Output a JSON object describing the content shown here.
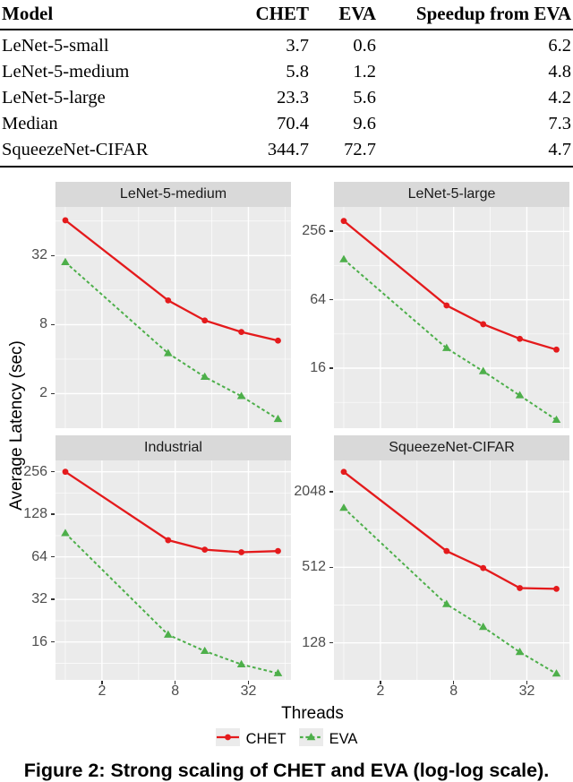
{
  "table": {
    "headers": [
      "Model",
      "CHET",
      "EVA",
      "Speedup from EVA"
    ],
    "rows": [
      [
        "LeNet-5-small",
        "3.7",
        "0.6",
        "6.2"
      ],
      [
        "LeNet-5-medium",
        "5.8",
        "1.2",
        "4.8"
      ],
      [
        "LeNet-5-large",
        "23.3",
        "5.6",
        "4.2"
      ],
      [
        "Median",
        "70.4",
        "9.6",
        "7.3"
      ],
      [
        "SqueezeNet-CIFAR",
        "344.7",
        "72.7",
        "4.7"
      ]
    ]
  },
  "chart_data": {
    "type": "line",
    "scale": "log-log",
    "xlabel": "Threads",
    "ylabel": "Average Latency (sec)",
    "x": [
      1,
      7,
      14,
      28,
      56
    ],
    "x_ticks": [
      2,
      8,
      32
    ],
    "x_minor": [
      1,
      4,
      16,
      64
    ],
    "xlim": [
      0.83,
      71.6
    ],
    "legend_labels": [
      "CHET",
      "EVA"
    ],
    "legend_position": "bottom",
    "grid": true,
    "series_styles": [
      {
        "name": "CHET",
        "color": "#e41a1c",
        "marker": "circle",
        "dash": "solid"
      },
      {
        "name": "EVA",
        "color": "#4daf4a",
        "marker": "triangle",
        "dash": "dashed"
      }
    ],
    "panels": [
      {
        "title": "LeNet-5-medium",
        "ylim": [
          1.0,
          85
        ],
        "y_ticks": [
          32,
          8,
          2
        ],
        "y_minor": [
          64,
          16,
          4
        ],
        "series": [
          {
            "name": "CHET",
            "values": [
              65,
              13,
              8.7,
              6.9,
              5.8
            ]
          },
          {
            "name": "EVA",
            "values": [
              28,
              4.5,
              2.8,
              1.9,
              1.2
            ]
          }
        ]
      },
      {
        "title": "LeNet-5-large",
        "ylim": [
          4.74,
          420
        ],
        "y_ticks": [
          256,
          64,
          16
        ],
        "y_minor": [
          128,
          32,
          8
        ],
        "series": [
          {
            "name": "CHET",
            "values": [
              316,
              57,
              39,
              29,
              23.3
            ]
          },
          {
            "name": "EVA",
            "values": [
              145,
              24,
              15,
              9.2,
              5.6
            ]
          }
        ]
      },
      {
        "title": "Industrial",
        "ylim": [
          8.63,
          308
        ],
        "y_ticks": [
          256,
          128,
          64,
          32,
          16
        ],
        "y_minor": [
          181,
          90.5,
          45.3,
          22.6,
          11.3
        ],
        "series": [
          {
            "name": "CHET",
            "values": [
              256,
              84,
              72,
              69,
              70.4
            ]
          },
          {
            "name": "EVA",
            "values": [
              94,
              18,
              13.8,
              11.1,
              9.6
            ]
          }
        ]
      },
      {
        "title": "SqueezeNet-CIFAR",
        "ylim": [
          64.9,
          3638
        ],
        "y_ticks": [
          2048,
          512,
          128
        ],
        "y_minor": [
          1024,
          256
        ],
        "series": [
          {
            "name": "CHET",
            "values": [
              2950,
              690,
              505,
              350,
              344.7
            ]
          },
          {
            "name": "EVA",
            "values": [
              1520,
              260,
              171,
              108,
              72.7
            ]
          }
        ]
      }
    ]
  },
  "caption": {
    "text": "Figure 2: Strong scaling of CHET and EVA (log-log scale)."
  },
  "colors": {
    "chet": "#e41a1c",
    "eva": "#4daf4a",
    "panel_bg": "#ebebeb",
    "strip_bg": "#d9d9d9",
    "grid": "#ffffff",
    "tick_text": "#4d4d4d"
  }
}
